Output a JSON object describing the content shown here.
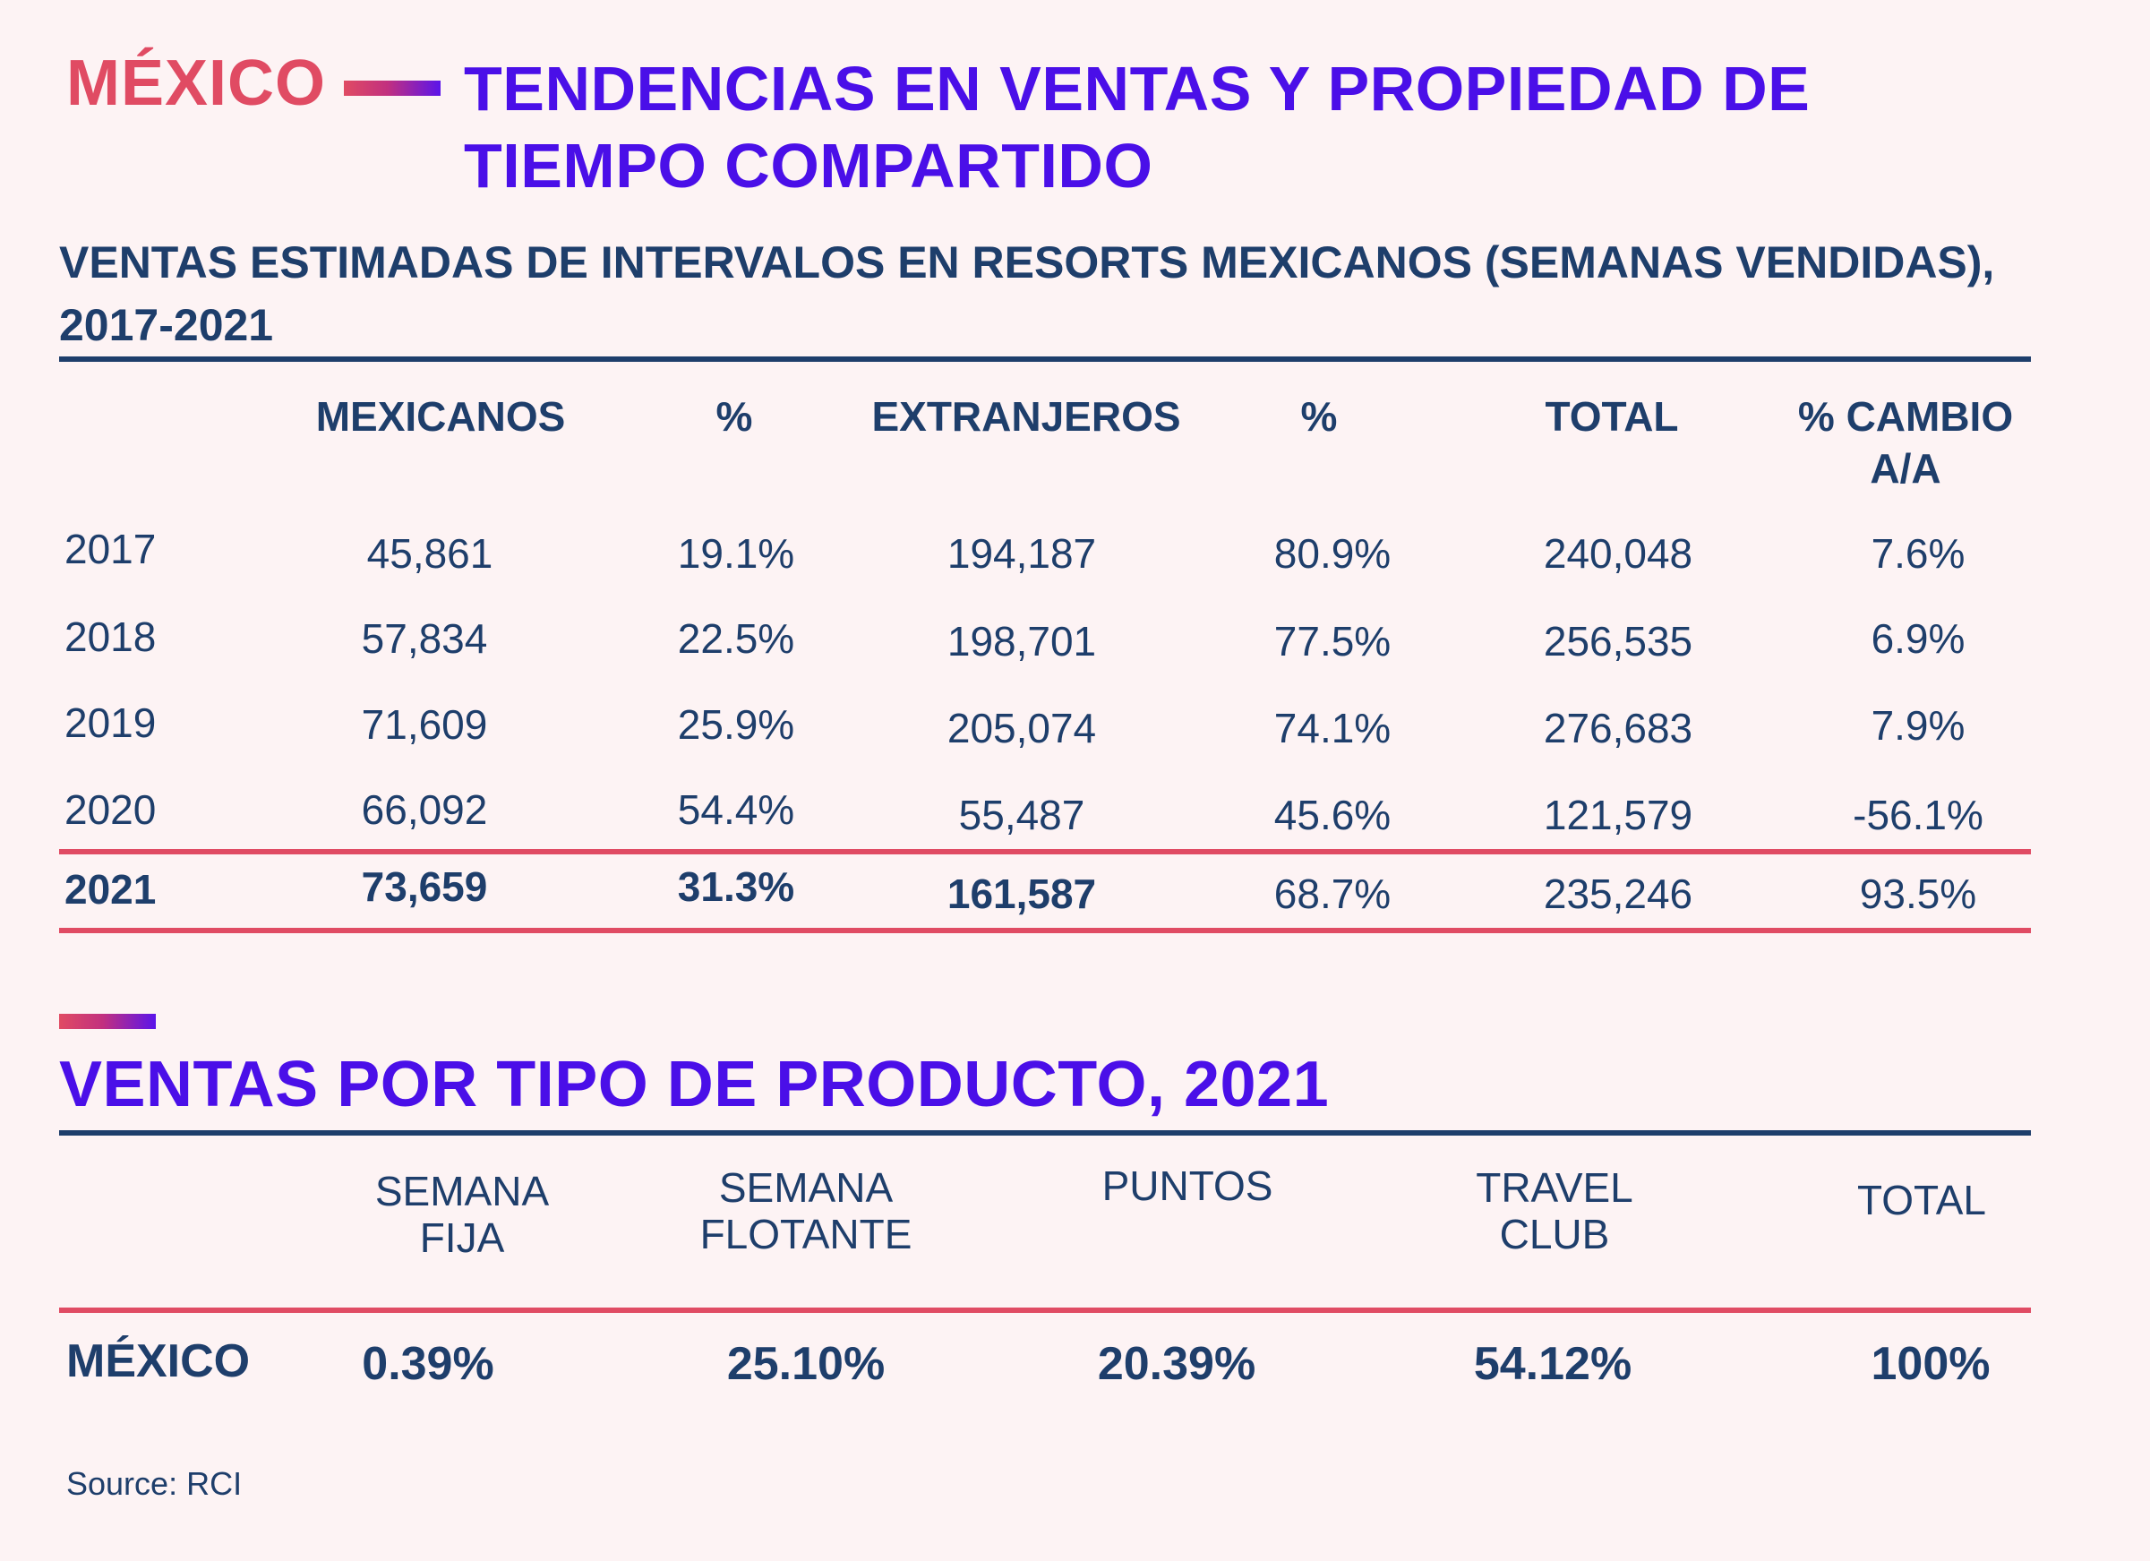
{
  "header": {
    "country": "MÉXICO",
    "title": "TENDENCIAS EN VENTAS Y PROPIEDAD DE TIEMPO COMPARTIDO"
  },
  "table1": {
    "title": "VENTAS ESTIMADAS DE INTERVALOS EN RESORTS MEXICANOS (SEMANAS VENDIDAS), 2017-2021",
    "headers": [
      "",
      "MEXICANOS",
      "%",
      "EXTRANJEROS",
      "%",
      "TOTAL",
      "% CAMBIO\nA/A"
    ],
    "rows": [
      [
        "2017",
        "45,861",
        "19.1%",
        "194,187",
        "80.9%",
        "240,048",
        "7.6%"
      ],
      [
        "2018",
        "57,834",
        "22.5%",
        "198,701",
        "77.5%",
        "256,535",
        "6.9%"
      ],
      [
        "2019",
        "71,609",
        "25.9%",
        "205,074",
        "74.1%",
        "276,683",
        "7.9%"
      ],
      [
        "2020",
        "66,092",
        "54.4%",
        "55,487",
        "45.6%",
        "121,579",
        "-56.1%"
      ],
      [
        "2021",
        "73,659",
        "31.3%",
        "161,587",
        "68.7%",
        "235,246",
        "93.5%"
      ]
    ]
  },
  "table2": {
    "title": "VENTAS POR TIPO DE PRODUCTO, 2021",
    "headers": [
      "SEMANA\nFIJA",
      "SEMANA\nFLOTANTE",
      "PUNTOS",
      "TRAVEL\nCLUB",
      "TOTAL"
    ],
    "row": {
      "label": "MÉXICO",
      "values": [
        "0.39%",
        "25.10%",
        "20.39%",
        "54.12%",
        "100%"
      ]
    }
  },
  "source": "Source: RCI",
  "colors": {
    "background": "#fdf3f4",
    "accent_red": "#e04b63",
    "accent_purple": "#4a0fe8",
    "navy": "#1e3e6b"
  }
}
